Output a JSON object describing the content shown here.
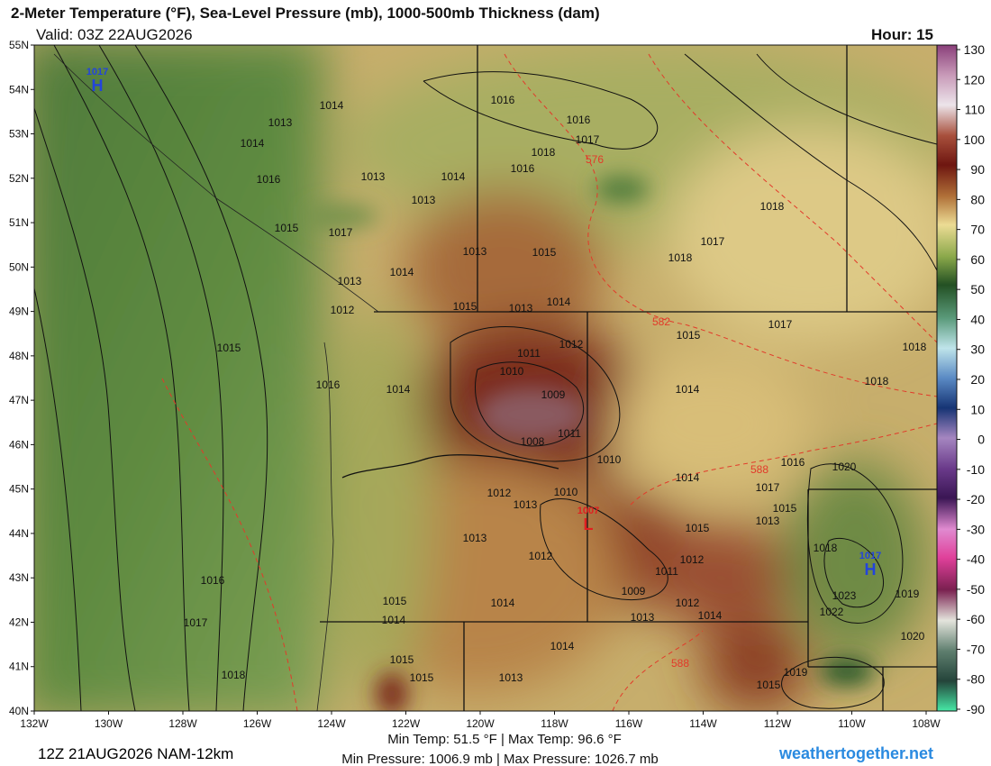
{
  "header": {
    "title": "2-Meter Temperature (°F), Sea-Level Pressure (mb), 1000-500mb Thickness (dam)",
    "valid": "Valid: 03Z 22AUG2026",
    "hour": "Hour: 15"
  },
  "lat_labels": [
    "55N",
    "54N",
    "53N",
    "52N",
    "51N",
    "50N",
    "49N",
    "48N",
    "47N",
    "46N",
    "45N",
    "44N",
    "43N",
    "42N",
    "41N",
    "40N"
  ],
  "lon_labels": [
    "132W",
    "130W",
    "128W",
    "126W",
    "124W",
    "122W",
    "120W",
    "118W",
    "116W",
    "114W",
    "112W",
    "110W",
    "108W"
  ],
  "colorbar_ticks": [
    130,
    120,
    110,
    100,
    90,
    80,
    70,
    60,
    50,
    40,
    30,
    20,
    10,
    0,
    -10,
    -20,
    -30,
    -40,
    -50,
    -60,
    -70,
    -80,
    -90
  ],
  "isobar_labels": [
    "1013",
    "1014",
    "1014",
    "1016",
    "1016",
    "1017",
    "1018",
    "1016",
    "1016",
    "1013",
    "1014",
    "1013",
    "1018",
    "1015",
    "1017",
    "1017",
    "1013",
    "1015",
    "1018",
    "1014",
    "1013",
    "1014",
    "1015",
    "1013",
    "1012",
    "1017",
    "1015",
    "1012",
    "1011",
    "1018",
    "1010",
    "1016",
    "1014",
    "1009",
    "1014",
    "1018",
    "1015",
    "1011",
    "1008",
    "1010",
    "1016",
    "1014",
    "1020",
    "1017",
    "1012",
    "1010",
    "1013",
    "1015",
    "1013",
    "1015",
    "1013",
    "1012",
    "1018",
    "1012",
    "1011",
    "1016",
    "1009",
    "1023",
    "1019",
    "1014",
    "1012",
    "1015",
    "1014",
    "1013",
    "1014",
    "1022",
    "1017",
    "1020",
    "1014",
    "1015",
    "1019",
    "1018",
    "1015",
    "1013",
    "1015"
  ],
  "thickness_labels": [
    "576",
    "582",
    "588",
    "588"
  ],
  "centers": [
    {
      "letter": "H",
      "pressure": "1017"
    },
    {
      "letter": "L",
      "pressure": "1007"
    },
    {
      "letter": "H",
      "pressure": "1017"
    }
  ],
  "footer": {
    "run": "12Z 21AUG2026 NAM-12km",
    "temps": "Min Temp:  51.5 °F | Max Temp:  96.6 °F",
    "pressures": "Min Pressure: 1006.9 mb | Max Pressure: 1026.7 mb",
    "site": "weathertogether.net"
  }
}
